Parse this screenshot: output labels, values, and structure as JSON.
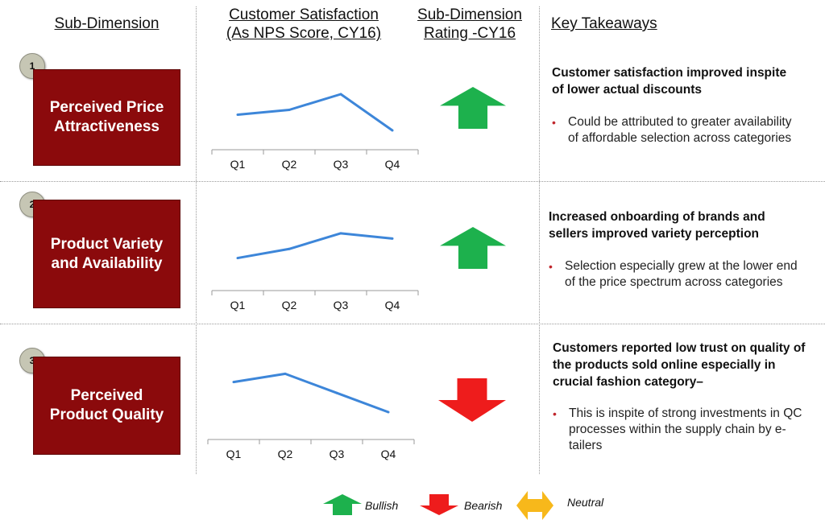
{
  "headers": {
    "sub_dimension": "Sub-Dimension",
    "satisfaction_line1": "Customer Satisfaction",
    "satisfaction_line2": "(As NPS Score, CY16)",
    "rating_line1": "Sub-Dimension",
    "rating_line2": "Rating -CY16",
    "takeaways": "Key Takeaways"
  },
  "rows": [
    {
      "number": "1",
      "dimension": "Perceived Price\nAttractiveness",
      "chart": {
        "quarters": [
          "Q1",
          "Q2",
          "Q3",
          "Q4"
        ],
        "values": [
          2.9,
          3.3,
          4.6,
          1.6
        ]
      },
      "rating": "bullish",
      "rating_color": "#1db14d",
      "takeaway_title": "Customer satisfaction improved inspite of lower actual discounts",
      "bullet": "Could be attributed to greater availability of affordable selection across categories"
    },
    {
      "number": "2",
      "dimension": "Product Variety\nand Availability",
      "chart": {
        "quarters": [
          "Q1",
          "Q2",
          "Q3",
          "Q4"
        ],
        "values": [
          2.5,
          3.2,
          4.4,
          4.0
        ]
      },
      "rating": "bullish",
      "rating_color": "#1db14d",
      "takeaway_title": "Increased onboarding of brands and sellers improved variety perception",
      "bullet": "Selection especially grew at the lower end of the price spectrum across categories"
    },
    {
      "number": "3",
      "dimension": "Perceived\nProduct Quality",
      "chart": {
        "quarters": [
          "Q1",
          "Q2",
          "Q3",
          "Q4"
        ],
        "values": [
          4.2,
          4.8,
          3.4,
          2.0
        ]
      },
      "rating": "bearish",
      "rating_color": "#ee1c1c",
      "takeaway_title": "Customers reported low trust on quality of the products sold online especially in crucial fashion category–",
      "bullet": "This is inspite of strong investments in QC processes within the supply chain by e-tailers"
    }
  ],
  "legend": {
    "bullish": "Bullish",
    "bearish": "Bearish",
    "neutral": "Neutral",
    "bullish_color": "#1db14d",
    "bearish_color": "#ee1c1c",
    "neutral_color": "#f7b81b"
  },
  "colors": {
    "box": "#8b0a0c",
    "line": "#3d86d9",
    "bullet_dot": "#c0272d"
  },
  "chart_data": [
    {
      "type": "line",
      "categories": [
        "Q1",
        "Q2",
        "Q3",
        "Q4"
      ],
      "values": [
        2.9,
        3.3,
        4.6,
        1.6
      ],
      "ylim": [
        0,
        6
      ],
      "grid": false
    },
    {
      "type": "line",
      "categories": [
        "Q1",
        "Q2",
        "Q3",
        "Q4"
      ],
      "values": [
        2.5,
        3.2,
        4.4,
        4.0
      ],
      "ylim": [
        0,
        6
      ],
      "grid": false
    },
    {
      "type": "line",
      "categories": [
        "Q1",
        "Q2",
        "Q3",
        "Q4"
      ],
      "values": [
        4.2,
        4.8,
        3.4,
        2.0
      ],
      "ylim": [
        0,
        6
      ],
      "grid": false
    }
  ]
}
